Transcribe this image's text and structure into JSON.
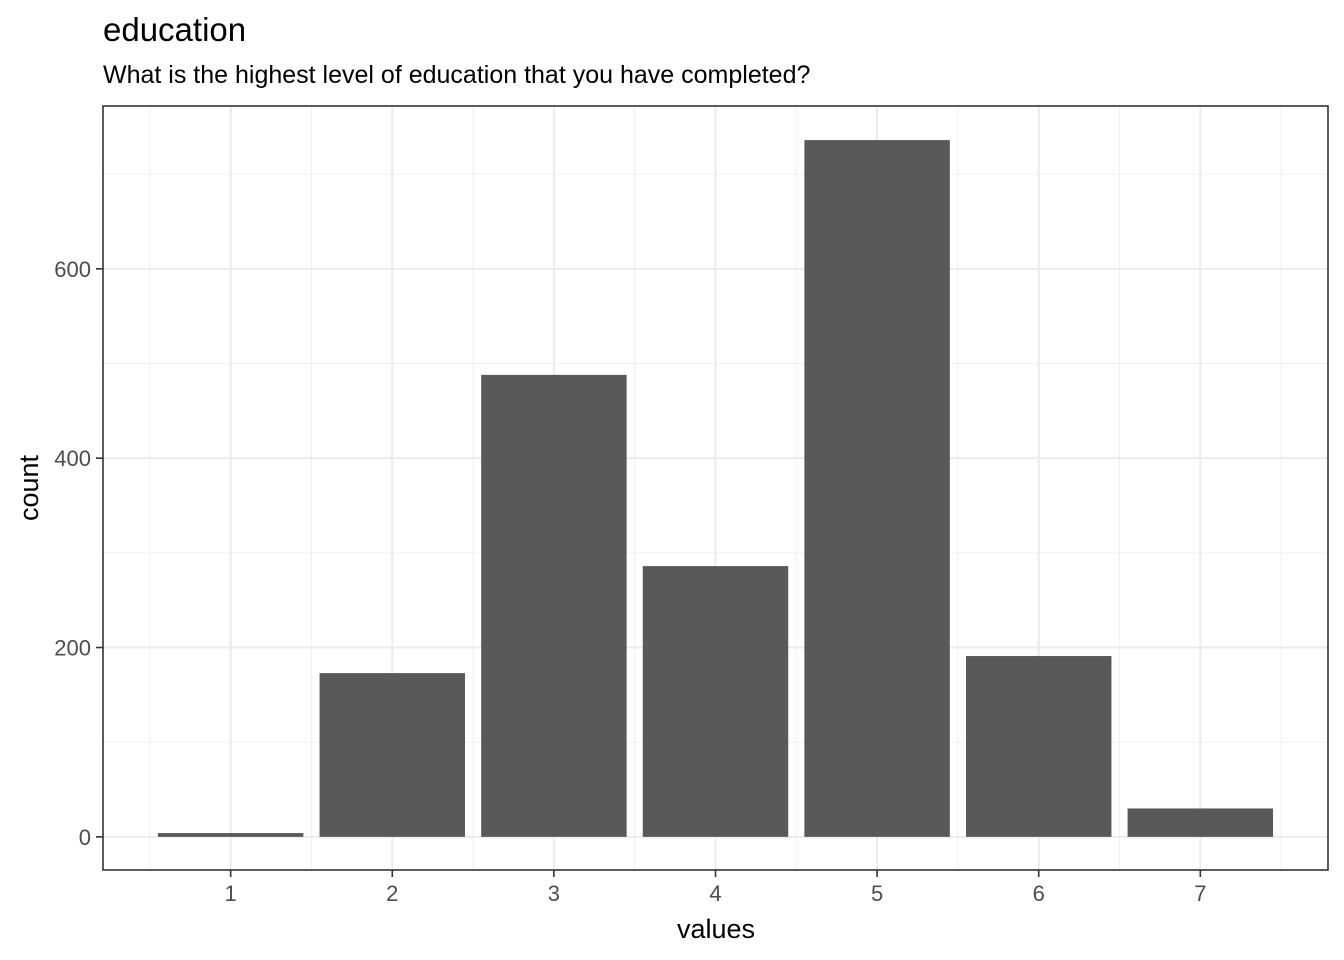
{
  "chart_data": {
    "type": "bar",
    "title": "education",
    "subtitle": "What is the highest level of education that you have completed?",
    "xlabel": "values",
    "ylabel": "count",
    "categories": [
      "1",
      "2",
      "3",
      "4",
      "5",
      "6",
      "7"
    ],
    "values": [
      4,
      173,
      488,
      286,
      736,
      191,
      30
    ],
    "ylim": [
      -35,
      772
    ],
    "yticks": [
      "0",
      "200",
      "400",
      "600"
    ],
    "bar_color": "#595959",
    "grid": true,
    "legend": "none"
  }
}
